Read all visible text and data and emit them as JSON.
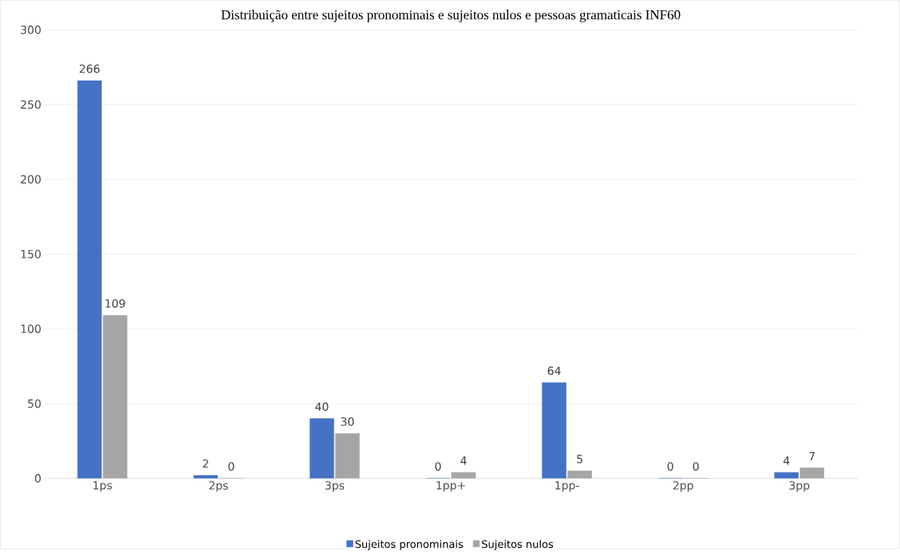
{
  "chart_data": {
    "type": "bar",
    "title": "Distribuição entre sujeitos pronominais e sujeitos nulos e pessoas gramaticais INF60",
    "categories": [
      "1ps",
      "2ps",
      "3ps",
      "1pp+",
      "1pp-",
      "2pp",
      "3pp"
    ],
    "series": [
      {
        "name": "Sujeitos pronominais",
        "color": "#4472c4",
        "values": [
          266,
          2,
          40,
          0,
          64,
          0,
          4
        ]
      },
      {
        "name": "Sujeitos nulos",
        "color": "#a5a5a5",
        "values": [
          109,
          0,
          30,
          4,
          5,
          0,
          7
        ]
      }
    ],
    "ylim": [
      0,
      300
    ],
    "yticks": [
      0,
      50,
      100,
      150,
      200,
      250,
      300
    ],
    "grid": "y",
    "legend": "bottom",
    "data_labels": true
  }
}
